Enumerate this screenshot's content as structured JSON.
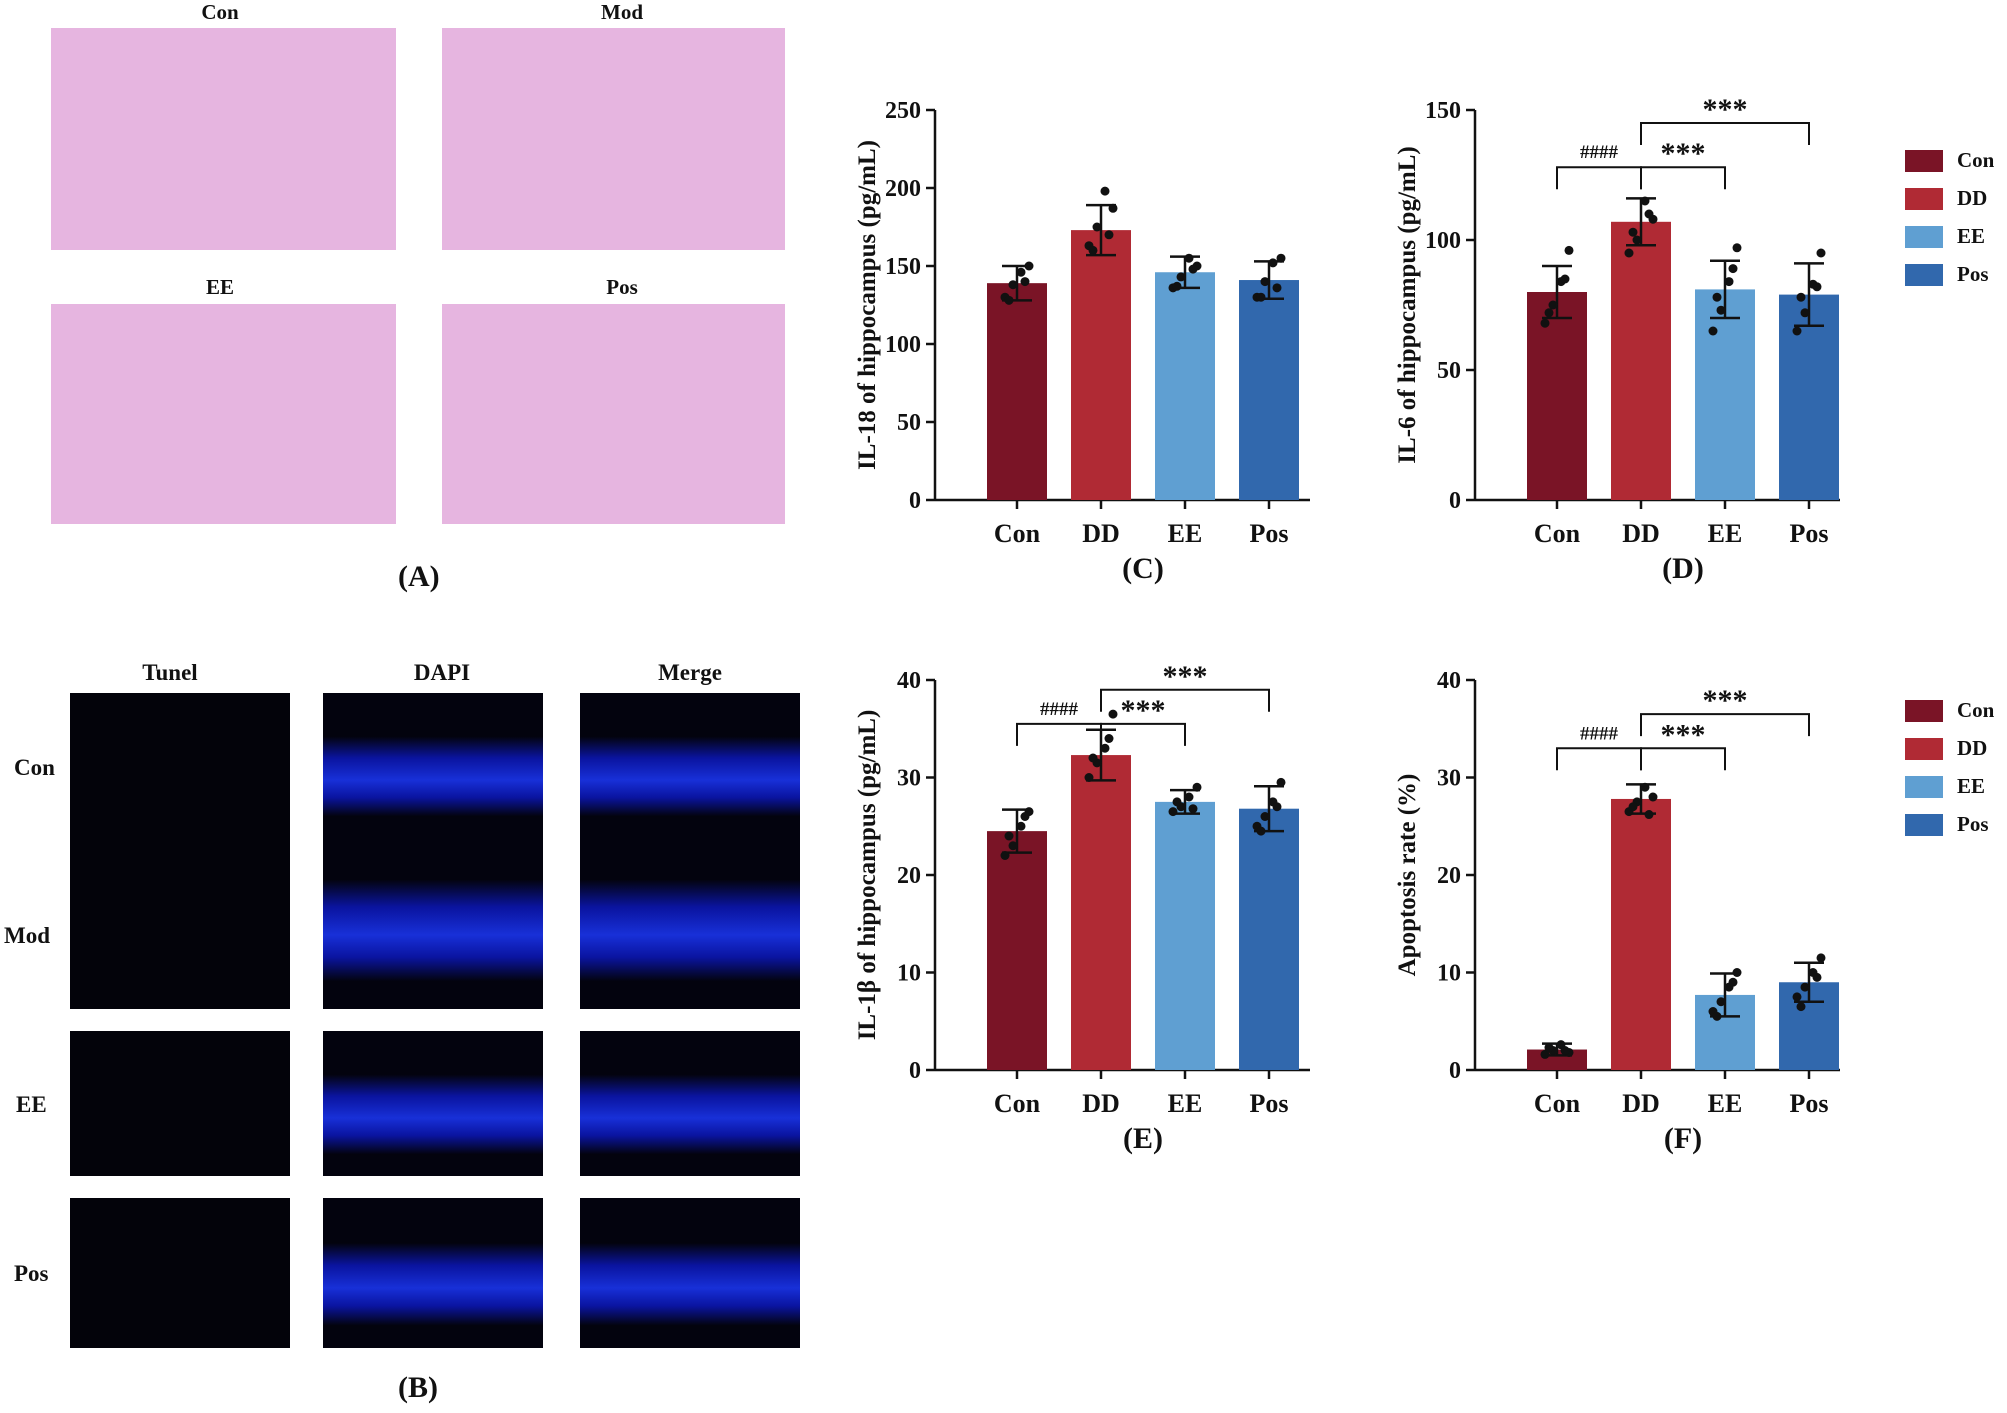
{
  "panelA": {
    "label": "(A)",
    "titles": [
      "Con",
      "Mod",
      "EE",
      "Pos"
    ]
  },
  "panelB": {
    "label": "(B)",
    "columns": [
      "Tunel",
      "DAPI",
      "Merge"
    ],
    "rows": [
      "Con",
      "Mod",
      "EE",
      "Pos"
    ]
  },
  "legend": [
    {
      "name": "Con",
      "color": "#7a1426"
    },
    {
      "name": "DD",
      "color": "#b02a34"
    },
    {
      "name": "EE",
      "color": "#5f9fd2"
    },
    {
      "name": "Pos",
      "color": "#3168ad"
    }
  ],
  "chart_data": [
    {
      "id": "C",
      "type": "bar",
      "panel_label": "(C)",
      "categories": [
        "Con",
        "DD",
        "EE",
        "Pos"
      ],
      "values": [
        139,
        173,
        146,
        141
      ],
      "errors": [
        11,
        16,
        10,
        12
      ],
      "points": [
        [
          130,
          138,
          146,
          150,
          128,
          140
        ],
        [
          163,
          175,
          198,
          187,
          160,
          170
        ],
        [
          136,
          143,
          155,
          150,
          137,
          148
        ],
        [
          130,
          140,
          152,
          155,
          130,
          136
        ]
      ],
      "ylabel": "IL-18 of hippocampus (pg/mL)",
      "ylim": [
        0,
        250
      ],
      "yticks": [
        0,
        50,
        100,
        150,
        200,
        250
      ],
      "annotations": []
    },
    {
      "id": "D",
      "type": "bar",
      "panel_label": "(D)",
      "categories": [
        "Con",
        "DD",
        "EE",
        "Pos"
      ],
      "values": [
        80,
        107,
        81,
        79
      ],
      "errors": [
        10,
        9,
        11,
        12
      ],
      "points": [
        [
          68,
          75,
          84,
          96,
          72,
          85
        ],
        [
          95,
          100,
          115,
          108,
          103,
          110
        ],
        [
          65,
          73,
          84,
          97,
          78,
          89
        ],
        [
          65,
          72,
          83,
          95,
          78,
          82
        ]
      ],
      "ylabel": "IL-6 of hippocampus (pg/mL)",
      "ylim": [
        0,
        150
      ],
      "yticks": [
        0,
        50,
        100,
        150
      ],
      "annotations": [
        {
          "from": 0,
          "to": 1,
          "text": "####",
          "level": 128
        },
        {
          "from": 1,
          "to": 2,
          "text": "***",
          "level": 128
        },
        {
          "from": 1,
          "to": 3,
          "text": "***",
          "level": 145
        }
      ]
    },
    {
      "id": "E",
      "type": "bar",
      "panel_label": "(E)",
      "categories": [
        "Con",
        "DD",
        "EE",
        "Pos"
      ],
      "values": [
        24.5,
        32.3,
        27.5,
        26.8
      ],
      "errors": [
        2.2,
        2.6,
        1.2,
        2.3
      ],
      "points": [
        [
          22,
          23,
          25,
          26.5,
          24,
          26
        ],
        [
          30,
          31.5,
          33,
          36.5,
          32,
          34
        ],
        [
          26.5,
          27,
          28,
          29,
          27.5,
          26.8
        ],
        [
          25,
          26,
          27.5,
          29.5,
          24.5,
          27
        ]
      ],
      "ylabel": "IL-1β of hippocampus (pg/mL)",
      "ylim": [
        0,
        40
      ],
      "yticks": [
        0,
        10,
        20,
        30,
        40
      ],
      "annotations": [
        {
          "from": 0,
          "to": 1,
          "text": "####",
          "level": 35.5
        },
        {
          "from": 1,
          "to": 2,
          "text": "***",
          "level": 35.5
        },
        {
          "from": 1,
          "to": 3,
          "text": "***",
          "level": 39
        }
      ]
    },
    {
      "id": "F",
      "type": "bar",
      "panel_label": "(F)",
      "categories": [
        "Con",
        "DD",
        "EE",
        "Pos"
      ],
      "values": [
        2.1,
        27.8,
        7.7,
        9.0
      ],
      "errors": [
        0.6,
        1.5,
        2.2,
        2.0
      ],
      "points": [
        [
          1.6,
          2.0,
          2.6,
          1.8,
          2.3,
          2.0
        ],
        [
          26.5,
          27.5,
          29.0,
          28.0,
          27.0,
          26.2
        ],
        [
          6.0,
          7.0,
          8.5,
          10.0,
          5.5,
          9.0
        ],
        [
          7.5,
          8.5,
          10.0,
          11.5,
          6.5,
          9.5
        ]
      ],
      "ylabel": "Apoptosis rate (%)",
      "ylim": [
        0,
        40
      ],
      "yticks": [
        0,
        10,
        20,
        30,
        40
      ],
      "annotations": [
        {
          "from": 0,
          "to": 1,
          "text": "####",
          "level": 33
        },
        {
          "from": 1,
          "to": 2,
          "text": "***",
          "level": 33
        },
        {
          "from": 1,
          "to": 3,
          "text": "***",
          "level": 36.5
        }
      ]
    }
  ]
}
